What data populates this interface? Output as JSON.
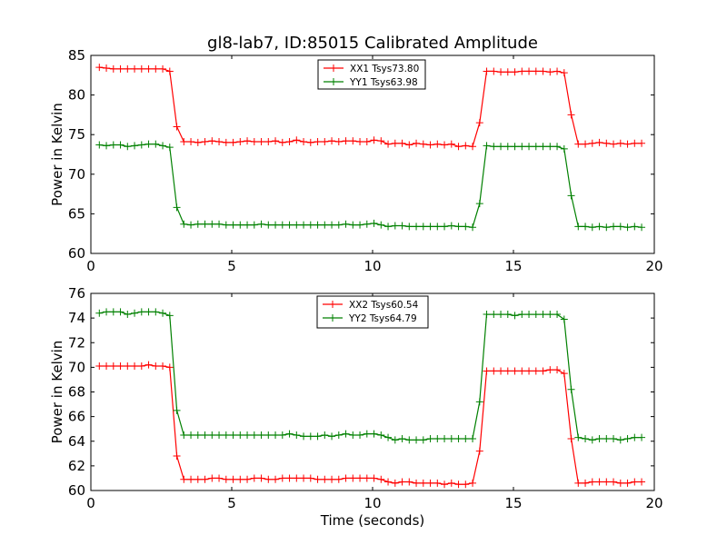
{
  "title": "gl8-lab7, ID:85015 Calibrated Amplitude",
  "chart_data": [
    {
      "type": "line",
      "xlabel": "",
      "ylabel": "Power in Kelvin",
      "xlim": [
        0,
        20
      ],
      "ylim": [
        60,
        85
      ],
      "xticks": [
        0,
        5,
        10,
        15,
        20
      ],
      "yticks": [
        60,
        65,
        70,
        75,
        80,
        85
      ],
      "grid": false,
      "legend_position": "top-center",
      "x": [
        0.3,
        0.55,
        0.8,
        1.05,
        1.3,
        1.55,
        1.8,
        2.05,
        2.3,
        2.55,
        2.8,
        3.05,
        3.3,
        3.55,
        3.8,
        4.05,
        4.3,
        4.55,
        4.8,
        5.05,
        5.3,
        5.55,
        5.8,
        6.05,
        6.3,
        6.55,
        6.8,
        7.05,
        7.3,
        7.55,
        7.8,
        8.05,
        8.3,
        8.55,
        8.8,
        9.05,
        9.3,
        9.55,
        9.8,
        10.05,
        10.3,
        10.55,
        10.8,
        11.05,
        11.3,
        11.55,
        11.8,
        12.05,
        12.3,
        12.55,
        12.8,
        13.05,
        13.3,
        13.55,
        13.8,
        14.05,
        14.3,
        14.55,
        14.8,
        15.05,
        15.3,
        15.55,
        15.8,
        16.05,
        16.3,
        16.55,
        16.8,
        17.05,
        17.3,
        17.55,
        17.8,
        18.05,
        18.3,
        18.55,
        18.8,
        19.05,
        19.3,
        19.55
      ],
      "series": [
        {
          "name": "XX1 Tsys73.80",
          "color": "#ff0000",
          "values": [
            83.5,
            83.4,
            83.3,
            83.3,
            83.3,
            83.3,
            83.3,
            83.3,
            83.3,
            83.3,
            83.0,
            76.0,
            74.1,
            74.1,
            74.0,
            74.1,
            74.2,
            74.1,
            74.0,
            74.0,
            74.1,
            74.2,
            74.1,
            74.1,
            74.1,
            74.2,
            74.0,
            74.1,
            74.3,
            74.1,
            74.0,
            74.1,
            74.1,
            74.2,
            74.1,
            74.2,
            74.2,
            74.1,
            74.1,
            74.3,
            74.2,
            73.8,
            73.9,
            73.9,
            73.7,
            73.9,
            73.8,
            73.7,
            73.8,
            73.7,
            73.8,
            73.5,
            73.6,
            73.5,
            76.5,
            83.0,
            83.0,
            82.9,
            82.9,
            82.9,
            83.0,
            83.0,
            83.0,
            83.0,
            82.9,
            83.0,
            82.8,
            77.5,
            73.8,
            73.8,
            73.9,
            74.0,
            73.9,
            73.8,
            73.9,
            73.8,
            73.9,
            73.9
          ]
        },
        {
          "name": "YY1 Tsys63.98",
          "color": "#008000",
          "values": [
            73.7,
            73.6,
            73.7,
            73.7,
            73.5,
            73.6,
            73.7,
            73.8,
            73.8,
            73.6,
            73.4,
            65.8,
            63.7,
            63.6,
            63.7,
            63.7,
            63.7,
            63.7,
            63.6,
            63.6,
            63.6,
            63.6,
            63.6,
            63.7,
            63.6,
            63.6,
            63.6,
            63.6,
            63.6,
            63.6,
            63.6,
            63.6,
            63.6,
            63.6,
            63.6,
            63.7,
            63.6,
            63.6,
            63.7,
            63.8,
            63.6,
            63.4,
            63.5,
            63.5,
            63.4,
            63.4,
            63.4,
            63.4,
            63.4,
            63.4,
            63.5,
            63.4,
            63.4,
            63.3,
            66.3,
            73.6,
            73.5,
            73.5,
            73.5,
            73.5,
            73.5,
            73.5,
            73.5,
            73.5,
            73.5,
            73.5,
            73.2,
            67.3,
            63.4,
            63.4,
            63.3,
            63.4,
            63.3,
            63.4,
            63.4,
            63.3,
            63.4,
            63.3
          ]
        }
      ]
    },
    {
      "type": "line",
      "xlabel": "Time (seconds)",
      "ylabel": "Power in Kelvin",
      "xlim": [
        0,
        20
      ],
      "ylim": [
        60,
        76
      ],
      "xticks": [
        0,
        5,
        10,
        15,
        20
      ],
      "yticks": [
        60,
        62,
        64,
        66,
        68,
        70,
        72,
        74,
        76
      ],
      "grid": false,
      "legend_position": "top-center",
      "x": [
        0.3,
        0.55,
        0.8,
        1.05,
        1.3,
        1.55,
        1.8,
        2.05,
        2.3,
        2.55,
        2.8,
        3.05,
        3.3,
        3.55,
        3.8,
        4.05,
        4.3,
        4.55,
        4.8,
        5.05,
        5.3,
        5.55,
        5.8,
        6.05,
        6.3,
        6.55,
        6.8,
        7.05,
        7.3,
        7.55,
        7.8,
        8.05,
        8.3,
        8.55,
        8.8,
        9.05,
        9.3,
        9.55,
        9.8,
        10.05,
        10.3,
        10.55,
        10.8,
        11.05,
        11.3,
        11.55,
        11.8,
        12.05,
        12.3,
        12.55,
        12.8,
        13.05,
        13.3,
        13.55,
        13.8,
        14.05,
        14.3,
        14.55,
        14.8,
        15.05,
        15.3,
        15.55,
        15.8,
        16.05,
        16.3,
        16.55,
        16.8,
        17.05,
        17.3,
        17.55,
        17.8,
        18.05,
        18.3,
        18.55,
        18.8,
        19.05,
        19.3,
        19.55
      ],
      "series": [
        {
          "name": "XX2 Tsys60.54",
          "color": "#ff0000",
          "values": [
            70.1,
            70.1,
            70.1,
            70.1,
            70.1,
            70.1,
            70.1,
            70.2,
            70.1,
            70.1,
            70.0,
            62.8,
            60.9,
            60.9,
            60.9,
            60.9,
            61.0,
            61.0,
            60.9,
            60.9,
            60.9,
            60.9,
            61.0,
            61.0,
            60.9,
            60.9,
            61.0,
            61.0,
            61.0,
            61.0,
            61.0,
            60.9,
            60.9,
            60.9,
            60.9,
            61.0,
            61.0,
            61.0,
            61.0,
            61.0,
            60.9,
            60.7,
            60.6,
            60.7,
            60.7,
            60.6,
            60.6,
            60.6,
            60.6,
            60.5,
            60.6,
            60.5,
            60.5,
            60.6,
            63.2,
            69.7,
            69.7,
            69.7,
            69.7,
            69.7,
            69.7,
            69.7,
            69.7,
            69.7,
            69.8,
            69.8,
            69.5,
            64.2,
            60.6,
            60.6,
            60.7,
            60.7,
            60.7,
            60.7,
            60.6,
            60.6,
            60.7,
            60.7
          ]
        },
        {
          "name": "YY2 Tsys64.79",
          "color": "#008000",
          "values": [
            74.4,
            74.5,
            74.5,
            74.5,
            74.3,
            74.4,
            74.5,
            74.5,
            74.5,
            74.4,
            74.2,
            66.5,
            64.5,
            64.5,
            64.5,
            64.5,
            64.5,
            64.5,
            64.5,
            64.5,
            64.5,
            64.5,
            64.5,
            64.5,
            64.5,
            64.5,
            64.5,
            64.6,
            64.5,
            64.4,
            64.4,
            64.4,
            64.5,
            64.4,
            64.5,
            64.6,
            64.5,
            64.5,
            64.6,
            64.6,
            64.5,
            64.3,
            64.1,
            64.2,
            64.1,
            64.1,
            64.1,
            64.2,
            64.2,
            64.2,
            64.2,
            64.2,
            64.2,
            64.2,
            67.2,
            74.3,
            74.3,
            74.3,
            74.3,
            74.2,
            74.3,
            74.3,
            74.3,
            74.3,
            74.3,
            74.3,
            73.9,
            68.2,
            64.3,
            64.2,
            64.1,
            64.2,
            64.2,
            64.2,
            64.1,
            64.2,
            64.3,
            64.3
          ]
        }
      ]
    }
  ]
}
